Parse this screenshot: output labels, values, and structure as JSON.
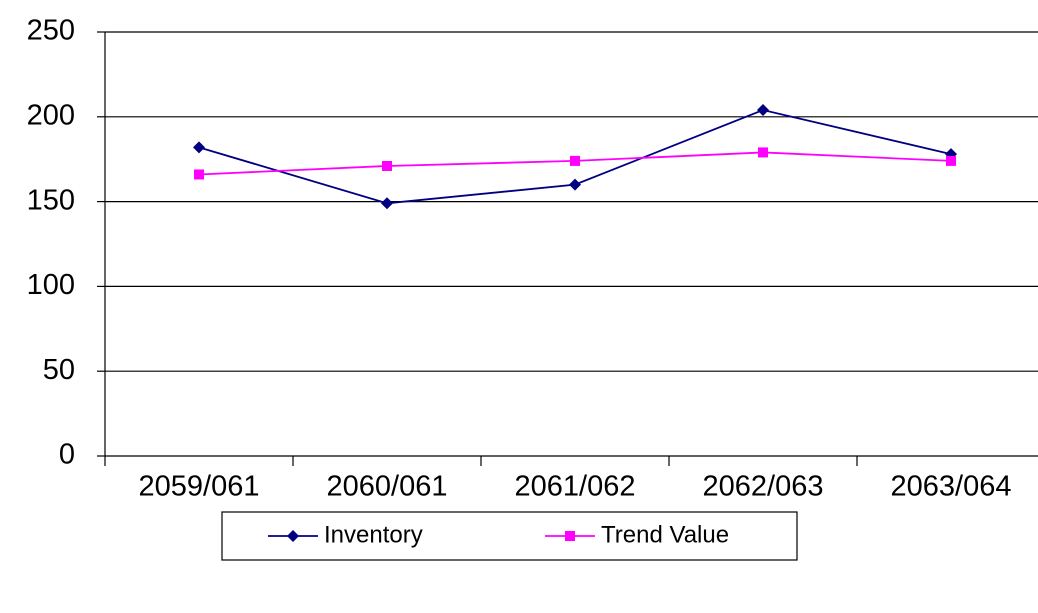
{
  "chart_data": {
    "type": "line",
    "categories": [
      "2059/061",
      "2060/061",
      "2061/062",
      "2062/063",
      "2063/064"
    ],
    "series": [
      {
        "name": "Inventory",
        "color": "#000080",
        "marker": "diamond",
        "values": [
          182,
          149,
          160,
          204,
          178
        ]
      },
      {
        "name": "Trend Value",
        "color": "#ff00ff",
        "marker": "square",
        "values": [
          166,
          171,
          174,
          179,
          174
        ]
      }
    ],
    "ylim": [
      0,
      250
    ],
    "yticks": [
      0,
      50,
      100,
      150,
      200,
      250
    ],
    "grid": true,
    "legend": "bottom"
  }
}
